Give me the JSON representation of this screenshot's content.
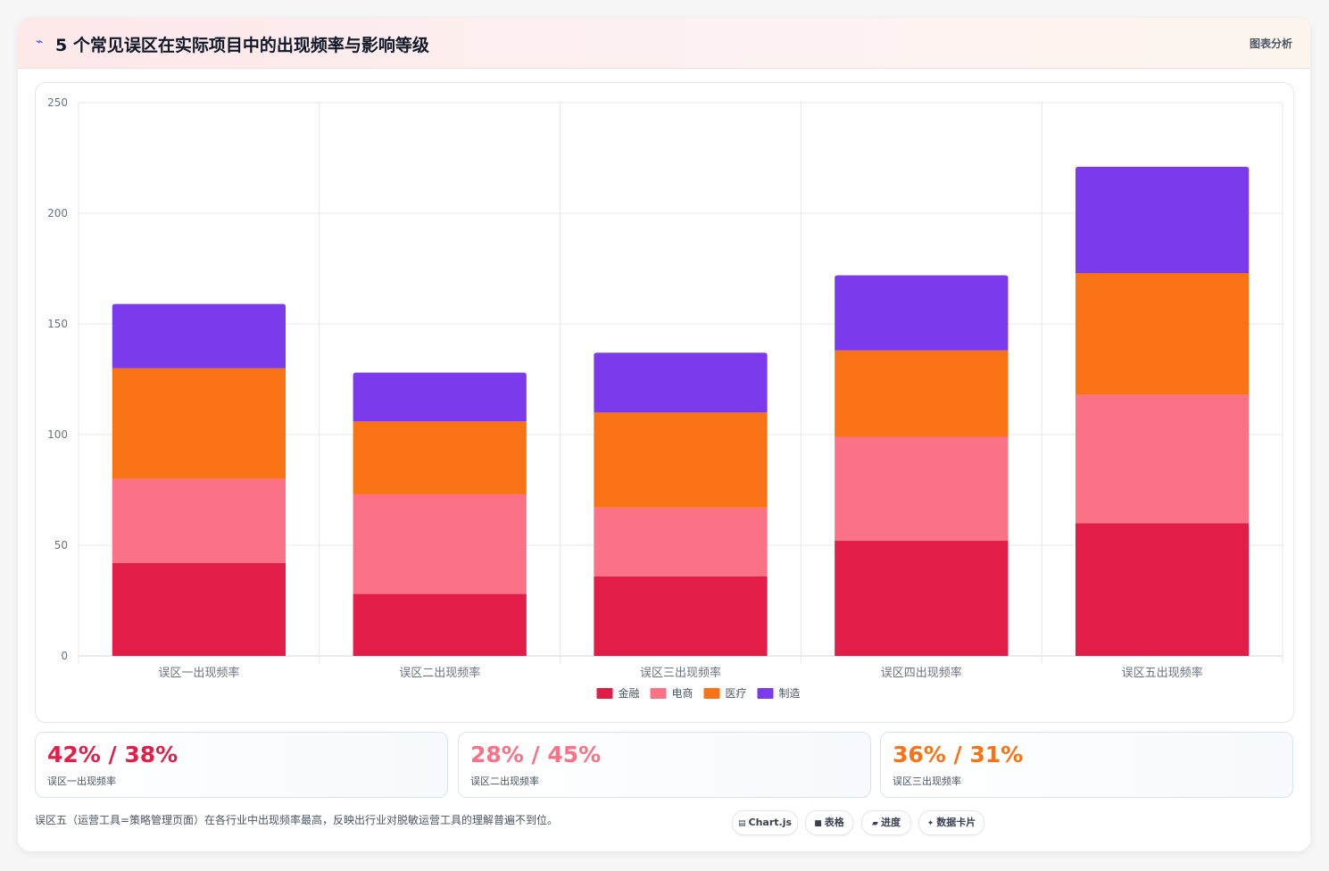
{
  "header": {
    "logo_icon": "wave-icon",
    "title": "5 个常见误区在实际项目中的出现频率与影响等级",
    "badge": "图表分析"
  },
  "chart_data": {
    "type": "bar",
    "stacked": true,
    "categories": [
      "误区一出现频率",
      "误区二出现频率",
      "误区三出现频率",
      "误区四出现频率",
      "误区五出现频率"
    ],
    "series": [
      {
        "name": "金融",
        "color": "#e11d48",
        "values": [
          42,
          28,
          36,
          52,
          60
        ]
      },
      {
        "name": "电商",
        "color": "#fb7185",
        "values": [
          38,
          45,
          31,
          47,
          58
        ]
      },
      {
        "name": "医疗",
        "color": "#f97316",
        "values": [
          50,
          33,
          43,
          39,
          55
        ]
      },
      {
        "name": "制造",
        "color": "#7c3aed",
        "values": [
          29,
          22,
          27,
          34,
          48
        ]
      }
    ],
    "ylim": [
      0,
      250
    ],
    "yticks": [
      0,
      50,
      100,
      150,
      200,
      250
    ],
    "grid": true,
    "legend": "bottom"
  },
  "stats": [
    {
      "value": "42% / 38%",
      "label": "误区一出现频率",
      "color": "#e11d48"
    },
    {
      "value": "28% / 45%",
      "label": "误区二出现频率",
      "color": "#fb7185"
    },
    {
      "value": "36% / 31%",
      "label": "误区三出现频率",
      "color": "#f97316"
    }
  ],
  "footer": {
    "note": "误区五（运营工具=策略管理页面）在各行业中出现频率最高，反映出行业对脱敏运营工具的理解普遍不到位。",
    "chips": [
      {
        "icon": "▤",
        "label": "Chart.js"
      },
      {
        "icon": "■",
        "label": "表格"
      },
      {
        "icon": "▰",
        "label": "进度"
      },
      {
        "icon": "✦",
        "label": "数据卡片"
      }
    ]
  }
}
